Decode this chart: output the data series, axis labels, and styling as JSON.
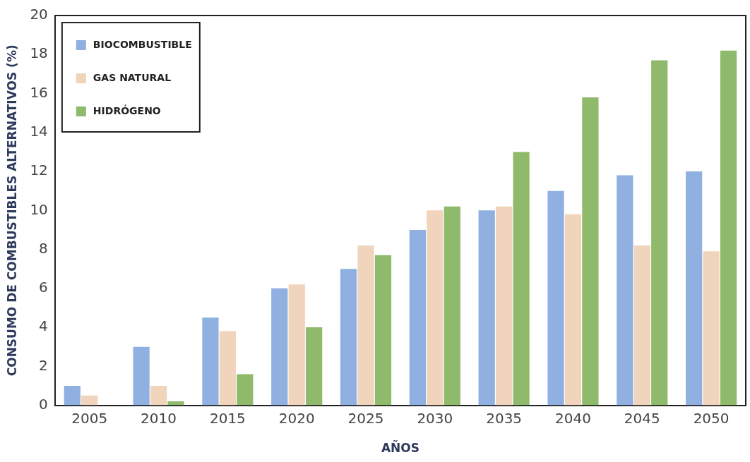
{
  "chart_data": {
    "type": "bar",
    "xlabel": "AÑOS",
    "ylabel": "CONSUMO DE COMBUSTIBLES ALTERNATIVOS (%)",
    "categories": [
      "2005",
      "2010",
      "2015",
      "2020",
      "2025",
      "2030",
      "2035",
      "2040",
      "2045",
      "2050"
    ],
    "series": [
      {
        "name": "BIOCOMBUSTIBLE",
        "color": "#8fb0e0",
        "values": [
          1,
          3,
          4.5,
          6,
          7,
          9,
          10,
          11,
          11.8,
          12
        ]
      },
      {
        "name": "GAS NATURAL",
        "color": "#f0d4bc",
        "values": [
          0.5,
          1,
          3.8,
          6.2,
          8.2,
          10,
          10.2,
          9.8,
          8.2,
          7.9
        ]
      },
      {
        "name": "HIDRÓGENO",
        "color": "#8fba6c",
        "values": [
          0,
          0.2,
          1.6,
          4,
          7.7,
          10.2,
          13,
          15.8,
          17.7,
          18.2
        ]
      }
    ],
    "ylim": [
      0,
      20
    ],
    "yticks": [
      0,
      2,
      4,
      6,
      8,
      10,
      12,
      14,
      16,
      18,
      20
    ],
    "grid": false,
    "legend": "top left"
  }
}
